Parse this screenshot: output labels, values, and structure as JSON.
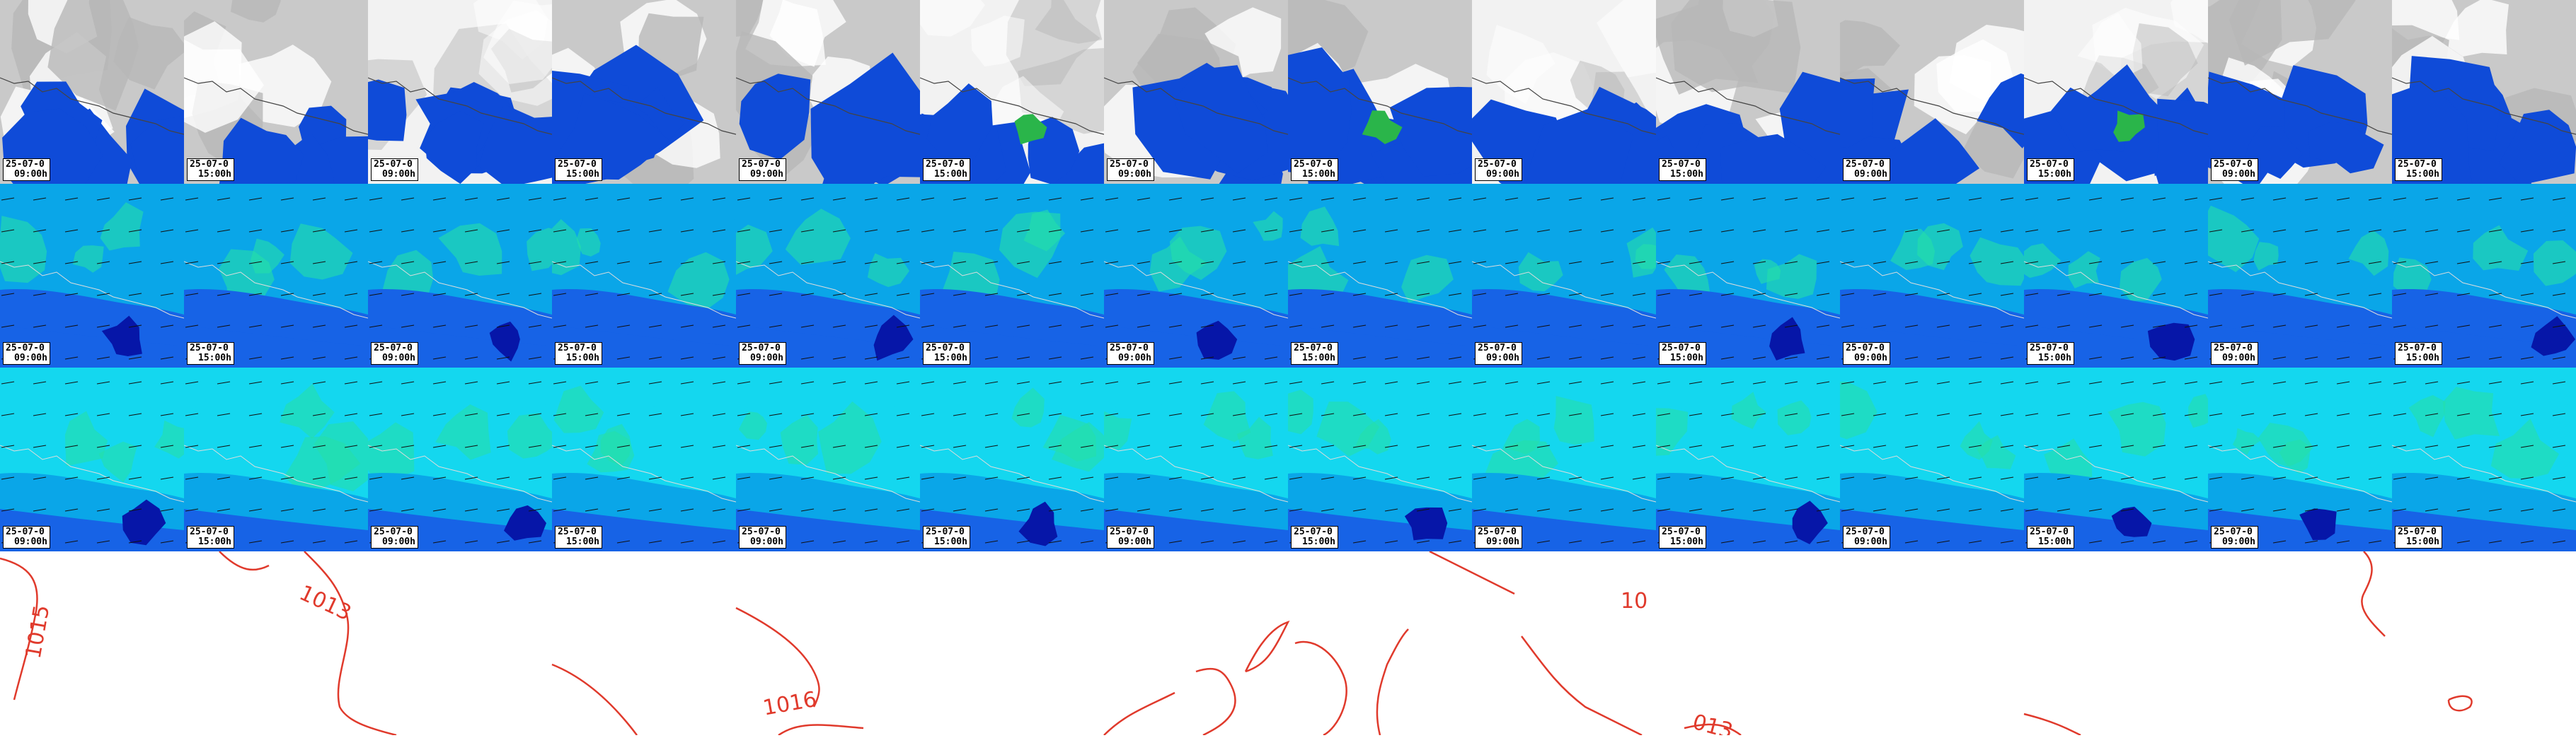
{
  "colors": {
    "cloud_gray": "#b8b8b8",
    "precip_blue": "#0f4bd8",
    "precip_green": "#2ab54a",
    "field_dark": "#0616a8",
    "field_mid": "#1763e6",
    "field_light": "#0aa6e8",
    "field_cyan": "#14d7ef",
    "field_green": "#25e0a8",
    "isobar_red": "#e03a2c"
  },
  "frames": [
    {
      "date": "25-07-0",
      "time": "09:00h"
    },
    {
      "date": "25-07-0",
      "time": "15:00h"
    },
    {
      "date": "25-07-0",
      "time": "09:00h"
    },
    {
      "date": "25-07-0",
      "time": "15:00h"
    },
    {
      "date": "25-07-0",
      "time": "09:00h"
    },
    {
      "date": "25-07-0",
      "time": "15:00h"
    },
    {
      "date": "25-07-0",
      "time": "09:00h"
    },
    {
      "date": "25-07-0",
      "time": "15:00h"
    },
    {
      "date": "25-07-0",
      "time": "09:00h"
    },
    {
      "date": "25-07-0",
      "time": "15:00h"
    },
    {
      "date": "25-07-0",
      "time": "09:00h"
    },
    {
      "date": "25-07-0",
      "time": "15:00h"
    },
    {
      "date": "25-07-0",
      "time": "09:00h"
    },
    {
      "date": "25-07-0",
      "time": "15:00h"
    }
  ],
  "isobar_labels": [
    "1015",
    "1013",
    "1016",
    "10",
    "013"
  ]
}
